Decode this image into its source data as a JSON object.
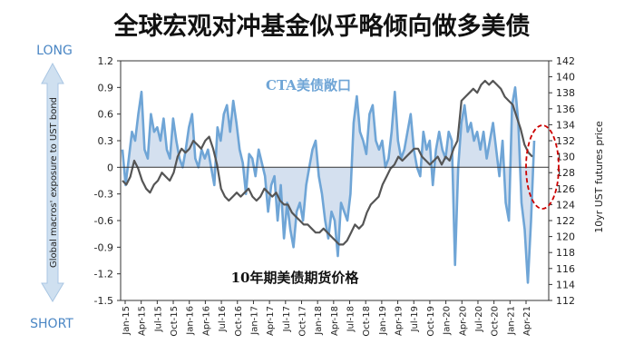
{
  "chart_data": {
    "type": "line",
    "title": "全球宏观对冲基金似乎略倾向做多美债",
    "left_axis": {
      "label": "Global macros' exposure to UST bond",
      "range": [
        -1.5,
        1.2
      ],
      "ticks": [
        "1.2",
        "0.9",
        "0.6",
        "0.3",
        "0",
        "-0.3",
        "-0.6",
        "-0.9",
        "-1.2",
        "-1.5"
      ]
    },
    "right_axis": {
      "label": "10yr UST futures price",
      "range": [
        112,
        142
      ],
      "ticks": [
        "142",
        "140",
        "138",
        "136",
        "134",
        "132",
        "130",
        "128",
        "126",
        "124",
        "122",
        "120",
        "118",
        "116",
        "114",
        "112"
      ]
    },
    "x_ticks": [
      "Jan-15",
      "Apr-15",
      "Jul-15",
      "Oct-15",
      "Jan-16",
      "Apr-16",
      "Jul-16",
      "Oct-16",
      "Jan-17",
      "Apr-17",
      "Jul-17",
      "Oct-17",
      "Jan-18",
      "Apr-18",
      "Jul-18",
      "Oct-18",
      "Jan-19",
      "Apr-19",
      "Jul-19",
      "Oct-19",
      "Jan-20",
      "Apr-20",
      "Jul-20",
      "Oct-20",
      "Jan-21",
      "Apr-21"
    ],
    "arrow_labels": {
      "top": "LONG",
      "bottom": "SHORT"
    },
    "series": [
      {
        "name": "CTA美债敞口",
        "axis": "left",
        "color": "#6fa5d6",
        "fill": "#d4e0ef",
        "values": [
          0.2,
          -0.2,
          0.1,
          0.4,
          0.3,
          0.6,
          0.85,
          0.2,
          0.1,
          0.6,
          0.4,
          0.45,
          0.3,
          0.55,
          0.2,
          0.1,
          0.55,
          0.3,
          0.1,
          0.0,
          0.2,
          0.45,
          0.6,
          0.1,
          0.0,
          0.2,
          0.1,
          0.2,
          0.0,
          -0.2,
          0.45,
          0.3,
          0.6,
          0.7,
          0.4,
          0.75,
          0.5,
          0.2,
          0.05,
          -0.3,
          0.15,
          0.1,
          -0.1,
          0.2,
          0.05,
          -0.1,
          -0.5,
          -0.2,
          -0.1,
          -0.6,
          -0.2,
          -0.8,
          -0.4,
          -0.7,
          -0.9,
          -0.5,
          -0.4,
          -0.6,
          -0.2,
          0.0,
          0.2,
          0.3,
          -0.1,
          -0.3,
          -0.6,
          -0.8,
          -0.5,
          -0.6,
          -1.0,
          -0.4,
          -0.5,
          -0.6,
          -0.3,
          0.5,
          0.8,
          0.4,
          0.3,
          0.15,
          0.6,
          0.7,
          0.3,
          0.2,
          0.3,
          0.0,
          0.1,
          0.4,
          0.85,
          0.3,
          0.1,
          0.2,
          0.4,
          0.6,
          0.2,
          0.0,
          -0.1,
          0.4,
          0.2,
          0.3,
          -0.2,
          0.2,
          0.4,
          0.2,
          0.1,
          0.4,
          0.3,
          -1.1,
          0.0,
          0.5,
          0.7,
          0.4,
          0.5,
          0.3,
          0.4,
          0.2,
          0.4,
          0.1,
          0.3,
          0.5,
          0.2,
          -0.1,
          0.3,
          -0.4,
          -0.6,
          0.7,
          0.9,
          0.5,
          -0.4,
          -0.7,
          -1.3,
          -0.6,
          0.3
        ],
        "annotation": "CTA美债敞口"
      },
      {
        "name": "10年期美债期货价格",
        "axis": "right",
        "color": "#555555",
        "values": [
          127.0,
          126.5,
          127.5,
          129.5,
          128.5,
          127.0,
          126.0,
          125.5,
          126.5,
          127.0,
          128.0,
          127.5,
          127.0,
          128.0,
          130.0,
          131.0,
          130.5,
          131.0,
          132.0,
          131.5,
          131.0,
          132.0,
          132.5,
          131.0,
          129.0,
          126.0,
          125.0,
          124.5,
          125.0,
          125.5,
          125.0,
          125.5,
          126.0,
          125.0,
          124.5,
          125.0,
          126.0,
          125.5,
          125.0,
          125.5,
          124.5,
          124.0,
          124.0,
          123.0,
          122.5,
          122.0,
          121.5,
          121.5,
          121.0,
          120.5,
          120.5,
          121.0,
          120.5,
          120.0,
          119.5,
          119.0,
          119.0,
          119.5,
          120.5,
          121.5,
          121.0,
          121.5,
          123.0,
          124.0,
          124.5,
          125.0,
          126.5,
          127.5,
          128.5,
          129.0,
          130.0,
          129.5,
          130.0,
          130.5,
          131.0,
          131.0,
          130.0,
          129.5,
          129.0,
          129.5,
          130.0,
          129.0,
          130.0,
          129.5,
          131.0,
          132.0,
          137.0,
          137.5,
          138.0,
          138.5,
          138.0,
          139.0,
          139.5,
          139.0,
          139.5,
          139.0,
          138.5,
          137.5,
          137.0,
          136.5,
          135.0,
          133.5,
          131.5,
          130.5,
          130.0
        ]
      }
    ],
    "series_label_text": "10年期美债期货价格",
    "highlight_ellipse": {
      "color": "#cc0000",
      "style": "dashed",
      "position": "right end"
    },
    "grid": false
  }
}
